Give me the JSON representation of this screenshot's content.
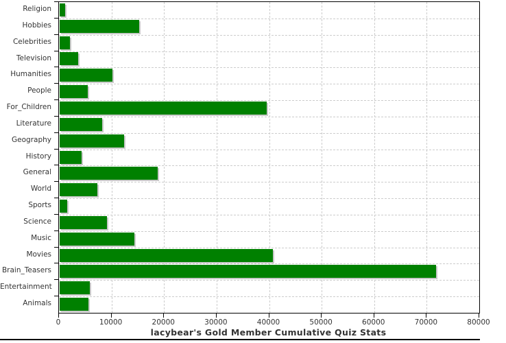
{
  "title": "lacybear's Gold Member Cumulative Quiz Stats",
  "chart_data": {
    "type": "bar",
    "orientation": "horizontal",
    "title": "lacybear's Gold Member Cumulative Quiz Stats",
    "xlabel": "",
    "ylabel": "",
    "categories": [
      "Religion",
      "Hobbies",
      "Celebrities",
      "Television",
      "Humanities",
      "People",
      "For_Children",
      "Literature",
      "Geography",
      "History",
      "General",
      "World",
      "Sports",
      "Science",
      "Music",
      "Movies",
      "Brain_Teasers",
      "Entertainment",
      "Animals"
    ],
    "values": [
      1000,
      15100,
      2000,
      3500,
      10100,
      5300,
      39400,
      8100,
      12300,
      4200,
      18600,
      7200,
      1500,
      9000,
      14200,
      40600,
      71600,
      5700,
      5500
    ],
    "xlim": [
      0,
      80000
    ],
    "xticks": [
      0,
      10000,
      20000,
      30000,
      40000,
      50000,
      60000,
      70000,
      80000
    ],
    "grid": true,
    "legend": false,
    "bar_color": "#008000",
    "shadow_color": "#c9c9c9",
    "gridline_color": "#cccccc",
    "axis_color": "#000000",
    "text_color": "#333333",
    "background_color": "#ffffff"
  }
}
